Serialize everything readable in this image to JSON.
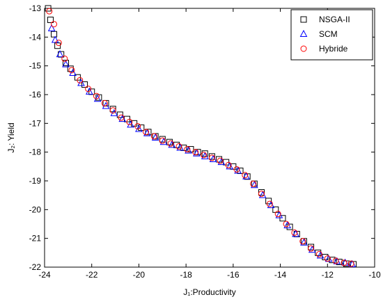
{
  "chart_data": {
    "type": "scatter",
    "xlabel": "J₁:Productivity",
    "ylabel": "J₂: Yield",
    "xlim": [
      -24,
      -10
    ],
    "ylim": [
      -22,
      -13
    ],
    "xticks": [
      -24,
      -22,
      -20,
      -18,
      -16,
      -14,
      -12,
      -10
    ],
    "yticks": [
      -13,
      -14,
      -15,
      -16,
      -17,
      -18,
      -19,
      -20,
      -21,
      -22
    ],
    "legend": "upper right",
    "series": [
      {
        "name": "NSGA-II",
        "color": "#000000",
        "marker": "square",
        "x": [
          -23.85,
          -23.75,
          -23.6,
          -23.45,
          -23.3,
          -23.1,
          -22.9,
          -22.6,
          -22.3,
          -22.0,
          -21.7,
          -21.4,
          -21.1,
          -20.8,
          -20.5,
          -20.2,
          -19.9,
          -19.6,
          -19.3,
          -19.0,
          -18.7,
          -18.4,
          -18.1,
          -17.8,
          -17.5,
          -17.2,
          -16.9,
          -16.6,
          -16.3,
          -16.0,
          -15.7,
          -15.4,
          -15.1,
          -14.8,
          -14.5,
          -14.2,
          -13.9,
          -13.6,
          -13.3,
          -13.0,
          -12.7,
          -12.4,
          -12.1,
          -11.8,
          -11.5,
          -11.2,
          -10.9
        ],
        "values": [
          -13.0,
          -13.4,
          -13.9,
          -14.3,
          -14.6,
          -14.9,
          -15.1,
          -15.4,
          -15.65,
          -15.9,
          -16.1,
          -16.3,
          -16.5,
          -16.7,
          -16.85,
          -17.0,
          -17.15,
          -17.3,
          -17.45,
          -17.55,
          -17.65,
          -17.75,
          -17.85,
          -17.9,
          -18.0,
          -18.05,
          -18.15,
          -18.25,
          -18.35,
          -18.5,
          -18.65,
          -18.85,
          -19.1,
          -19.4,
          -19.7,
          -20.0,
          -20.3,
          -20.6,
          -20.85,
          -21.1,
          -21.3,
          -21.5,
          -21.65,
          -21.75,
          -21.82,
          -21.88,
          -21.9
        ]
      },
      {
        "name": "SCM",
        "color": "#0000ff",
        "marker": "triangle",
        "x": [
          -23.7,
          -23.55,
          -23.35,
          -23.1,
          -22.8,
          -22.45,
          -22.1,
          -21.75,
          -21.4,
          -21.05,
          -20.7,
          -20.35,
          -20.0,
          -19.65,
          -19.3,
          -18.95,
          -18.6,
          -18.25,
          -17.9,
          -17.55,
          -17.2,
          -16.85,
          -16.5,
          -16.15,
          -15.8,
          -15.45,
          -15.1,
          -14.75,
          -14.4,
          -14.05,
          -13.7,
          -13.35,
          -13.0,
          -12.65,
          -12.3,
          -11.95,
          -11.6,
          -11.25,
          -10.95
        ],
        "values": [
          -13.7,
          -14.1,
          -14.6,
          -14.95,
          -15.25,
          -15.6,
          -15.9,
          -16.15,
          -16.4,
          -16.65,
          -16.85,
          -17.05,
          -17.2,
          -17.35,
          -17.5,
          -17.65,
          -17.75,
          -17.85,
          -17.95,
          -18.05,
          -18.15,
          -18.25,
          -18.35,
          -18.5,
          -18.65,
          -18.85,
          -19.15,
          -19.5,
          -19.85,
          -20.2,
          -20.55,
          -20.85,
          -21.15,
          -21.4,
          -21.6,
          -21.72,
          -21.8,
          -21.85,
          -21.9
        ]
      },
      {
        "name": "Hybride",
        "color": "#ff0000",
        "marker": "circle",
        "x": [
          -23.8,
          -23.6,
          -23.4,
          -23.15,
          -22.85,
          -22.5,
          -22.15,
          -21.8,
          -21.45,
          -21.1,
          -20.75,
          -20.4,
          -20.05,
          -19.7,
          -19.35,
          -19.0,
          -18.65,
          -18.3,
          -17.95,
          -17.6,
          -17.25,
          -16.9,
          -16.55,
          -16.2,
          -15.85,
          -15.5,
          -15.15,
          -14.8,
          -14.45,
          -14.1,
          -13.75,
          -13.4,
          -13.05,
          -12.7,
          -12.35,
          -12.0,
          -11.65,
          -11.3,
          -11.0
        ],
        "values": [
          -13.1,
          -13.55,
          -14.2,
          -14.75,
          -15.15,
          -15.5,
          -15.8,
          -16.05,
          -16.3,
          -16.55,
          -16.8,
          -16.95,
          -17.1,
          -17.3,
          -17.45,
          -17.6,
          -17.7,
          -17.8,
          -17.9,
          -18.0,
          -18.1,
          -18.2,
          -18.3,
          -18.45,
          -18.6,
          -18.8,
          -19.1,
          -19.45,
          -19.8,
          -20.15,
          -20.5,
          -20.8,
          -21.1,
          -21.35,
          -21.55,
          -21.7,
          -21.78,
          -21.85,
          -21.88
        ]
      }
    ]
  }
}
